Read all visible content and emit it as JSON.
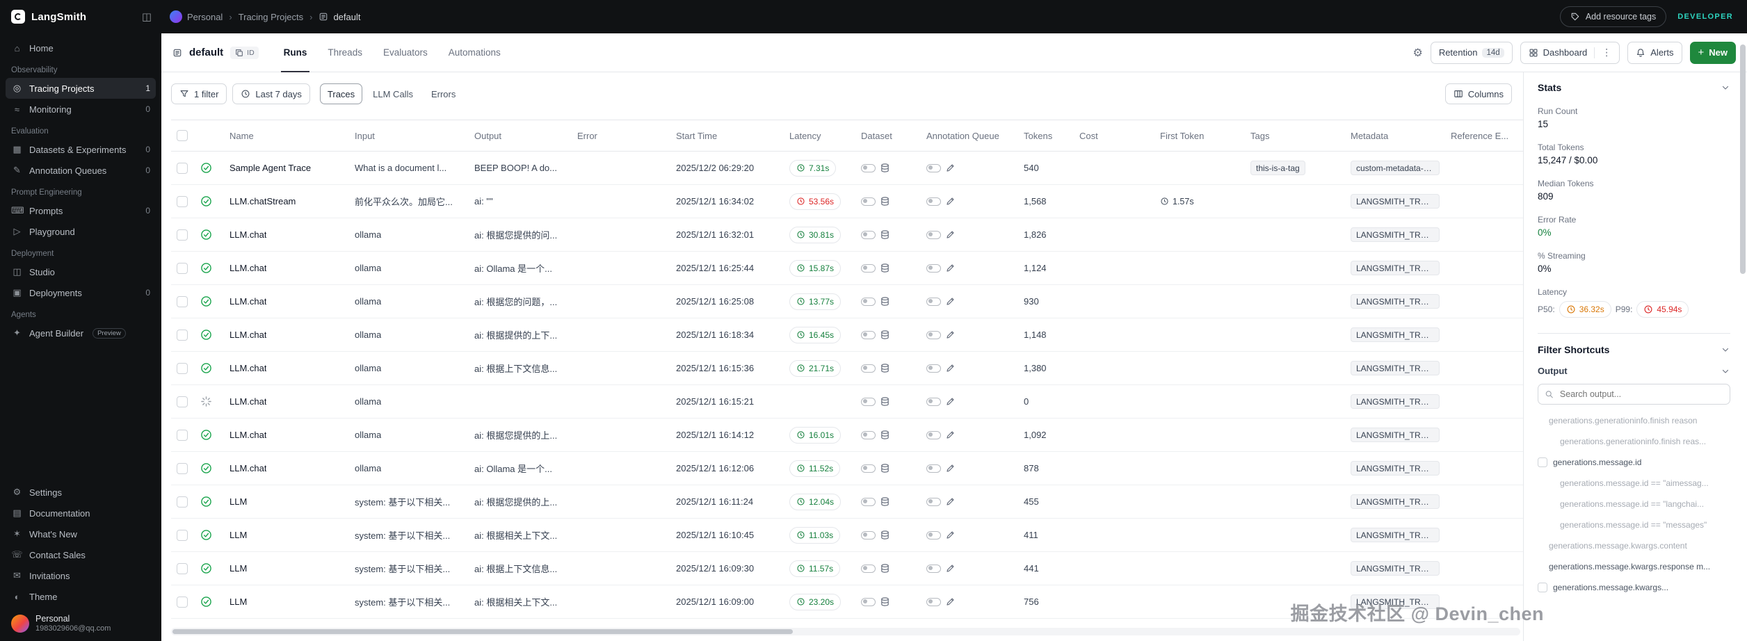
{
  "topbar": {
    "brand": "LangSmith",
    "breadcrumb": [
      {
        "label": "Personal",
        "icon": "avatar"
      },
      {
        "label": "Tracing Projects"
      },
      {
        "label": "default",
        "icon": "project"
      }
    ],
    "add_resource_tags": "Add resource tags",
    "plan_badge": "DEVELOPER"
  },
  "sidebar": {
    "sections": [
      {
        "label": "",
        "items": [
          {
            "icon": "home-icon",
            "label": "Home"
          }
        ]
      },
      {
        "label": "Observability",
        "items": [
          {
            "icon": "tracing-projects-icon",
            "label": "Tracing Projects",
            "count": "1",
            "active": true
          },
          {
            "icon": "monitoring-icon",
            "label": "Monitoring",
            "count": "0"
          }
        ]
      },
      {
        "label": "Evaluation",
        "items": [
          {
            "icon": "datasets-icon",
            "label": "Datasets & Experiments",
            "count": "0"
          },
          {
            "icon": "annotation-queues-icon",
            "label": "Annotation Queues",
            "count": "0"
          }
        ]
      },
      {
        "label": "Prompt Engineering",
        "items": [
          {
            "icon": "prompts-icon",
            "label": "Prompts",
            "count": "0"
          },
          {
            "icon": "playground-icon",
            "label": "Playground"
          }
        ]
      },
      {
        "label": "Deployment",
        "items": [
          {
            "icon": "studio-icon",
            "label": "Studio"
          },
          {
            "icon": "deployments-icon",
            "label": "Deployments",
            "count": "0"
          }
        ]
      },
      {
        "label": "Agents",
        "items": [
          {
            "icon": "agent-builder-icon",
            "label": "Agent Builder",
            "badge": "Preview"
          }
        ]
      }
    ],
    "utility": [
      {
        "icon": "settings-icon",
        "label": "Settings"
      },
      {
        "icon": "documentation-icon",
        "label": "Documentation"
      },
      {
        "icon": "whats-new-icon",
        "label": "What's New"
      },
      {
        "icon": "contact-sales-icon",
        "label": "Contact Sales"
      },
      {
        "icon": "invitations-icon",
        "label": "Invitations"
      },
      {
        "icon": "theme-icon",
        "label": "Theme"
      }
    ],
    "account": {
      "name": "Personal",
      "email": "1983029606@qq.com"
    }
  },
  "page": {
    "title": "default",
    "id_chip": "ID",
    "tabs": [
      {
        "label": "Runs",
        "active": true
      },
      {
        "label": "Threads"
      },
      {
        "label": "Evaluators"
      },
      {
        "label": "Automations"
      }
    ],
    "actions": {
      "retention_label": "Retention",
      "retention_value": "14d",
      "dashboard": "Dashboard",
      "alerts": "Alerts",
      "new_label": "New"
    }
  },
  "filters": {
    "filter_count": "1 filter",
    "time_range": "Last 7 days",
    "views": [
      {
        "label": "Traces",
        "active": true
      },
      {
        "label": "LLM Calls"
      },
      {
        "label": "Errors"
      }
    ],
    "columns_button": "Columns"
  },
  "table": {
    "columns": [
      {
        "key": "name",
        "label": "Name"
      },
      {
        "key": "input",
        "label": "Input"
      },
      {
        "key": "output",
        "label": "Output"
      },
      {
        "key": "error",
        "label": "Error"
      },
      {
        "key": "start",
        "label": "Start Time"
      },
      {
        "key": "latency",
        "label": "Latency"
      },
      {
        "key": "dataset",
        "label": "Dataset"
      },
      {
        "key": "queue",
        "label": "Annotation Queue"
      },
      {
        "key": "tokens",
        "label": "Tokens"
      },
      {
        "key": "cost",
        "label": "Cost"
      },
      {
        "key": "ftoken",
        "label": "First Token"
      },
      {
        "key": "tags",
        "label": "Tags"
      },
      {
        "key": "meta",
        "label": "Metadata"
      },
      {
        "key": "ref",
        "label": "Reference E..."
      }
    ],
    "rows": [
      {
        "status": "success",
        "name": "Sample Agent Trace",
        "input": "What is a document l...",
        "output": "BEEP BOOP! A do...",
        "start_time": "2025/12/2 06:29:20",
        "latency": "7.31s",
        "latency_color": "green",
        "tokens": "540",
        "first_token": "",
        "tags": [
          "this-is-a-tag"
        ],
        "metadata": [
          "custom-metadata-ke..."
        ]
      },
      {
        "status": "success",
        "name": "LLM.chatStream",
        "input": "前化平众么次。加局它...",
        "output": "ai: \"\"",
        "start_time": "2025/12/1 16:34:02",
        "latency": "53.56s",
        "latency_color": "red",
        "tokens": "1,568",
        "first_token": "1.57s",
        "tags": [],
        "metadata": [
          "LANGSMITH_TRACI..."
        ]
      },
      {
        "status": "success",
        "name": "LLM.chat",
        "input": "ollama",
        "output": "ai: 根据您提供的问...",
        "start_time": "2025/12/1 16:32:01",
        "latency": "30.81s",
        "latency_color": "green",
        "tokens": "1,826",
        "first_token": "",
        "tags": [],
        "metadata": [
          "LANGSMITH_TRACI..."
        ]
      },
      {
        "status": "success",
        "name": "LLM.chat",
        "input": "ollama",
        "output": "ai: Ollama 是一个...",
        "start_time": "2025/12/1 16:25:44",
        "latency": "15.87s",
        "latency_color": "green",
        "tokens": "1,124",
        "first_token": "",
        "tags": [],
        "metadata": [
          "LANGSMITH_TRACI..."
        ]
      },
      {
        "status": "success",
        "name": "LLM.chat",
        "input": "ollama",
        "output": "ai: 根据您的问题，...",
        "start_time": "2025/12/1 16:25:08",
        "latency": "13.77s",
        "latency_color": "green",
        "tokens": "930",
        "first_token": "",
        "tags": [],
        "metadata": [
          "LANGSMITH_TRACI..."
        ]
      },
      {
        "status": "success",
        "name": "LLM.chat",
        "input": "ollama",
        "output": "ai: 根据提供的上下...",
        "start_time": "2025/12/1 16:18:34",
        "latency": "16.45s",
        "latency_color": "green",
        "tokens": "1,148",
        "first_token": "",
        "tags": [],
        "metadata": [
          "LANGSMITH_TRACI..."
        ]
      },
      {
        "status": "success",
        "name": "LLM.chat",
        "input": "ollama",
        "output": "ai: 根据上下文信息...",
        "start_time": "2025/12/1 16:15:36",
        "latency": "21.71s",
        "latency_color": "green",
        "tokens": "1,380",
        "first_token": "",
        "tags": [],
        "metadata": [
          "LANGSMITH_TRACI..."
        ]
      },
      {
        "status": "pending",
        "name": "LLM.chat",
        "input": "ollama",
        "output": "",
        "start_time": "2025/12/1 16:15:21",
        "latency": "",
        "tokens": "0",
        "first_token": "",
        "tags": [],
        "metadata": [
          "LANGSMITH_TRACI..."
        ]
      },
      {
        "status": "success",
        "name": "LLM.chat",
        "input": "ollama",
        "output": "ai: 根据您提供的上...",
        "start_time": "2025/12/1 16:14:12",
        "latency": "16.01s",
        "latency_color": "green",
        "tokens": "1,092",
        "first_token": "",
        "tags": [],
        "metadata": [
          "LANGSMITH_TRACI..."
        ]
      },
      {
        "status": "success",
        "name": "LLM.chat",
        "input": "ollama",
        "output": "ai: Ollama 是一个...",
        "start_time": "2025/12/1 16:12:06",
        "latency": "11.52s",
        "latency_color": "green",
        "tokens": "878",
        "first_token": "",
        "tags": [],
        "metadata": [
          "LANGSMITH_TRACI..."
        ]
      },
      {
        "status": "success",
        "name": "LLM",
        "input": "system: 基于以下相关...",
        "output": "ai: 根据您提供的上...",
        "start_time": "2025/12/1 16:11:24",
        "latency": "12.04s",
        "latency_color": "green",
        "tokens": "455",
        "first_token": "",
        "tags": [],
        "metadata": [
          "LANGSMITH_TRACI..."
        ]
      },
      {
        "status": "success",
        "name": "LLM",
        "input": "system: 基于以下相关...",
        "output": "ai: 根据相关上下文...",
        "start_time": "2025/12/1 16:10:45",
        "latency": "11.03s",
        "latency_color": "green",
        "tokens": "411",
        "first_token": "",
        "tags": [],
        "metadata": [
          "LANGSMITH_TRACI..."
        ]
      },
      {
        "status": "success",
        "name": "LLM",
        "input": "system: 基于以下相关...",
        "output": "ai: 根据上下文信息...",
        "start_time": "2025/12/1 16:09:30",
        "latency": "11.57s",
        "latency_color": "green",
        "tokens": "441",
        "first_token": "",
        "tags": [],
        "metadata": [
          "LANGSMITH_TRACI..."
        ]
      },
      {
        "status": "success",
        "name": "LLM",
        "input": "system: 基于以下相关...",
        "output": "ai: 根据相关上下文...",
        "start_time": "2025/12/1 16:09:00",
        "latency": "23.20s",
        "latency_color": "green",
        "tokens": "756",
        "first_token": "",
        "tags": [],
        "metadata": [
          "LANGSMITH_TRACI..."
        ]
      },
      {
        "status": "success",
        "name": "",
        "input": "",
        "output": "",
        "start_time": "",
        "latency": "",
        "tokens": "",
        "first_token": "",
        "tags": [],
        "metadata": []
      }
    ]
  },
  "stats": {
    "title": "Stats",
    "metrics": [
      {
        "label": "Run Count",
        "value": "15"
      },
      {
        "label": "Total Tokens",
        "value": "15,247 / $0.00"
      },
      {
        "label": "Median Tokens",
        "value": "809"
      },
      {
        "label": "Error Rate",
        "value": "0%",
        "color": "green"
      },
      {
        "label": "% Streaming",
        "value": "0%"
      }
    ],
    "latency": {
      "label": "Latency",
      "p50_label": "P50:",
      "p50": "36.32s",
      "p99_label": "P99:",
      "p99": "45.94s"
    }
  },
  "filter_shortcuts": {
    "title": "Filter Shortcuts",
    "group": "Output",
    "search_placeholder": "Search output...",
    "items": [
      {
        "text": "generations.generationinfo.finish reason",
        "indent": 1,
        "checkbox": false,
        "muted": true
      },
      {
        "text": "generations.generationinfo.finish reas...",
        "indent": 2,
        "checkbox": false,
        "muted": true
      },
      {
        "text": "generations.message.id",
        "indent": 0,
        "checkbox": true,
        "muted": false
      },
      {
        "text": "generations.message.id == \"aimessag...",
        "indent": 2,
        "checkbox": false,
        "muted": true
      },
      {
        "text": "generations.message.id == \"langchai...",
        "indent": 2,
        "checkbox": false,
        "muted": true
      },
      {
        "text": "generations.message.id == \"messages\"",
        "indent": 2,
        "checkbox": false,
        "muted": true
      },
      {
        "text": "generations.message.kwargs.content",
        "indent": 1,
        "checkbox": false,
        "muted": true
      },
      {
        "text": "generations.message.kwargs.response m...",
        "indent": 1,
        "checkbox": false,
        "muted": false
      },
      {
        "text": "generations.message.kwargs...",
        "indent": 0,
        "checkbox": true,
        "muted": false
      }
    ]
  },
  "watermark": "掘金技术社区 @ Devin_chen",
  "colors": {
    "new_button": "#1f883d",
    "latency_fast": "#15803d",
    "latency_slow": "#dc2626",
    "latency_p50": "#d97706",
    "latency_p99": "#dc2626",
    "plan_badge": "#2dd4bf",
    "error_rate": "#15803d"
  }
}
